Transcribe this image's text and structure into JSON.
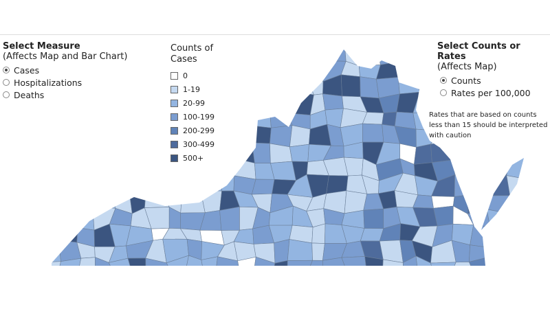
{
  "measure": {
    "title": "Select Measure",
    "subtitle": "(Affects Map and Bar Chart)",
    "options": [
      {
        "label": "Cases",
        "selected": true
      },
      {
        "label": "Hospitalizations",
        "selected": false
      },
      {
        "label": "Deaths",
        "selected": false
      }
    ]
  },
  "legend": {
    "title": "Counts of Cases",
    "items": [
      {
        "label": "0",
        "color": "#ffffff"
      },
      {
        "label": "1-19",
        "color": "#c5d9f0"
      },
      {
        "label": "20-99",
        "color": "#93b5e1"
      },
      {
        "label": "100-199",
        "color": "#7b9dd0"
      },
      {
        "label": "200-299",
        "color": "#6083b8"
      },
      {
        "label": "300-499",
        "color": "#4e6b9c"
      },
      {
        "label": "500+",
        "color": "#3b5580"
      }
    ]
  },
  "mode": {
    "title": "Select Counts or Rates",
    "subtitle": "(Affects Map)",
    "options": [
      {
        "label": "Counts",
        "selected": true
      },
      {
        "label": "Rates per 100,000",
        "selected": false
      }
    ]
  },
  "note": "Rates that are based on counts less than 15 should be interpreted with caution"
}
